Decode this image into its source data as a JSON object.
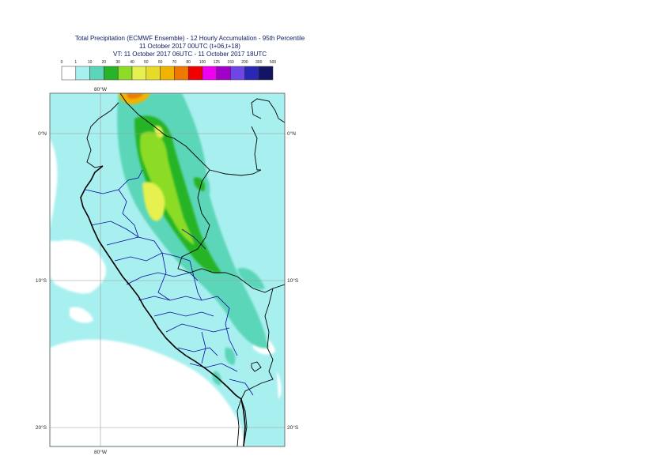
{
  "title": {
    "line1": "Total Precipitation (ECMWF Ensemble) - 12 Hourly Accumulation - 95th Percentile",
    "line2": "11 October 2017 00UTC (t+06,t+18)",
    "line3": "VT: 11 October 2017 06UTC - 11 October 2017 18UTC"
  },
  "legend": {
    "thresholds": [
      "0",
      "1",
      "10",
      "20",
      "30",
      "40",
      "50",
      "60",
      "70",
      "80",
      "100",
      "125",
      "150",
      "200",
      "300",
      "500"
    ],
    "colors": [
      "#ffffff",
      "#a8f0f0",
      "#5cd6b8",
      "#28b428",
      "#8cdc28",
      "#e6f050",
      "#e6dc28",
      "#f0b400",
      "#f07800",
      "#f00000",
      "#f000f0",
      "#a000c8",
      "#6e46e6",
      "#2828b4",
      "#141464"
    ]
  },
  "axes": {
    "lon_top": "80°W",
    "lon_bottom": "80°W",
    "lat_left": [
      "0°N",
      "10°S",
      "20°S"
    ],
    "lat_right": [
      "0°N",
      "10°S",
      "20°S"
    ]
  },
  "map": {
    "border_color": "#000000",
    "region_color": "#0a0aa0",
    "gridline_color": "#9a9a9a"
  }
}
